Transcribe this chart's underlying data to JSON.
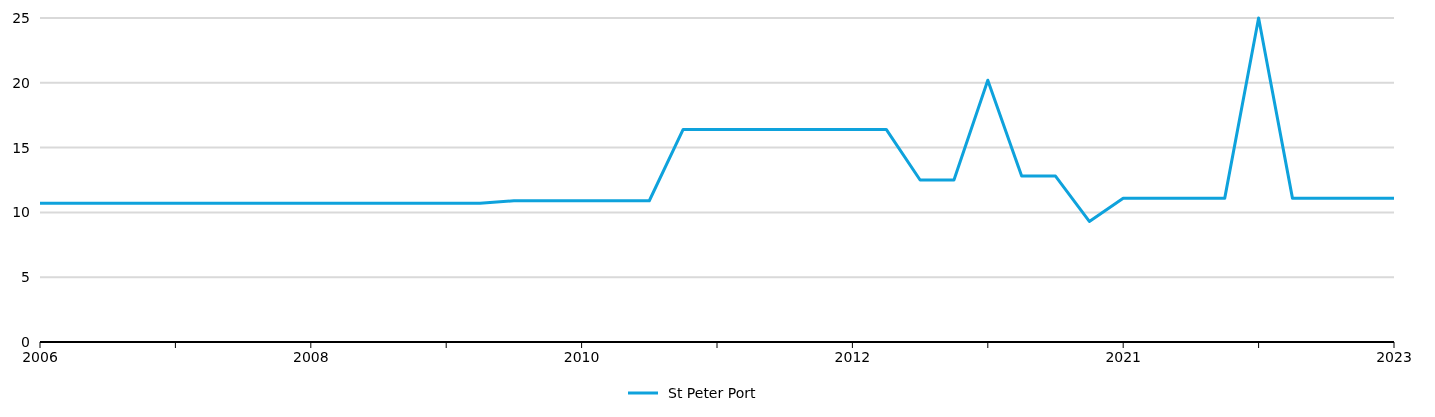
{
  "chart_data": {
    "type": "line",
    "categories": [
      "2006",
      null,
      null,
      null,
      null,
      null,
      null,
      null,
      "2008",
      null,
      null,
      null,
      null,
      null,
      null,
      null,
      "2010",
      null,
      null,
      null,
      null,
      null,
      null,
      null,
      "2012",
      null,
      null,
      null,
      null,
      null,
      null,
      null,
      "2021",
      null,
      null,
      null,
      null,
      null,
      null,
      null,
      "2023"
    ],
    "series": [
      {
        "name": "St Peter Port",
        "color": "#0ea2dc",
        "values": [
          10.7,
          10.7,
          10.7,
          10.7,
          10.7,
          10.7,
          10.7,
          10.7,
          10.7,
          10.7,
          10.7,
          10.7,
          10.7,
          10.7,
          10.9,
          10.9,
          10.9,
          10.9,
          10.9,
          16.4,
          16.4,
          16.4,
          16.4,
          16.4,
          16.4,
          16.4,
          12.5,
          12.5,
          20.2,
          12.8,
          12.8,
          9.3,
          11.1,
          11.1,
          11.1,
          11.1,
          25,
          11.1,
          11.1,
          11.1,
          11.1
        ]
      }
    ],
    "ylim": [
      0,
      25
    ],
    "yticks": [
      0,
      5,
      10,
      15,
      20,
      25
    ],
    "grid": "y",
    "legend": "bottom",
    "marker": "none",
    "line_style": "solid"
  }
}
